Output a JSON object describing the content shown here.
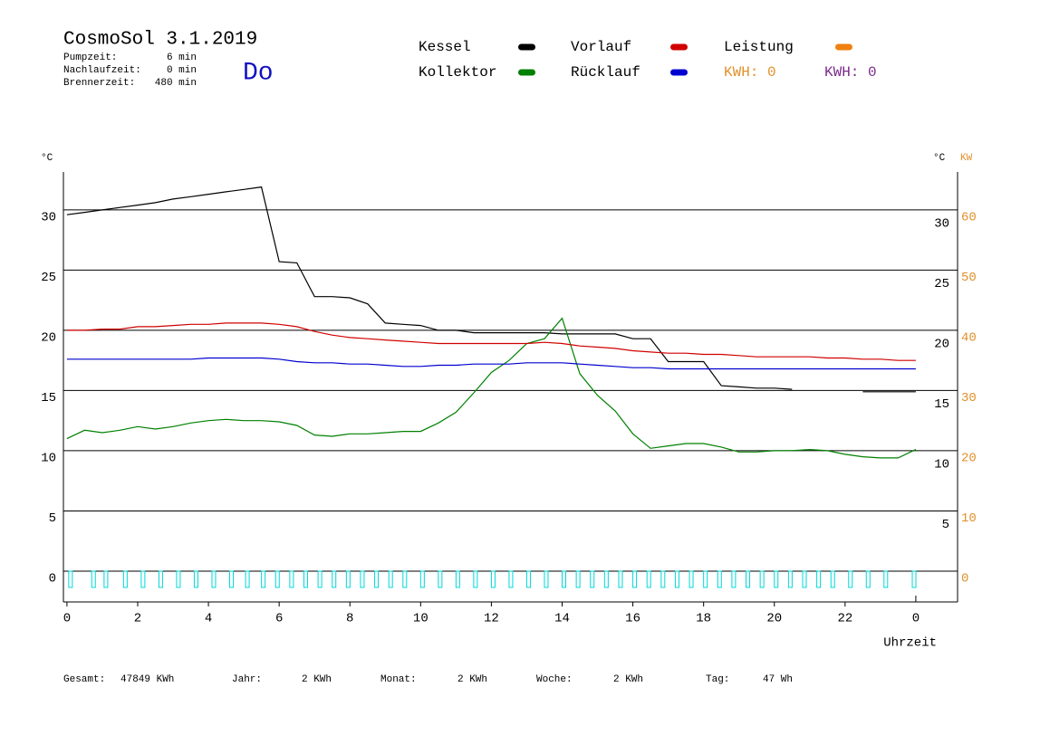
{
  "chart_data": {
    "type": "line",
    "title": "CosmoSol 3.1.2019",
    "day": "Do",
    "info": [
      {
        "label": "Pumpzeit:",
        "value": "6 min"
      },
      {
        "label": "Nachlaufzeit:",
        "value": "0 min"
      },
      {
        "label": "Brennerzeit:",
        "value": "480 min"
      }
    ],
    "kwh": [
      {
        "label": "KWH: 0",
        "color": "#e0902a"
      },
      {
        "label": "KWH: 0",
        "color": "#7a2a8a"
      }
    ],
    "y_label": "°C",
    "y2_label": "°C",
    "y3_label": "KW",
    "x_label": "Uhrzeit",
    "x": [
      0,
      0.5,
      1,
      1.5,
      2,
      2.5,
      3,
      3.5,
      4,
      4.5,
      5,
      5.5,
      6,
      6.5,
      7,
      7.5,
      8,
      8.5,
      9,
      9.5,
      10,
      10.5,
      11,
      11.5,
      12,
      12.5,
      13,
      13.5,
      14,
      14.5,
      15,
      15.5,
      16,
      16.5,
      17,
      17.5,
      18,
      18.5,
      19,
      19.5,
      20,
      20.5,
      21,
      21.5,
      22,
      22.5,
      23,
      23.5,
      24
    ],
    "xlim": [
      -0.1,
      25.18
    ],
    "xticks": [
      0,
      2,
      4,
      6,
      8,
      10,
      12,
      14,
      16,
      18,
      20,
      22,
      {
        "value": 24,
        "label": "0"
      }
    ],
    "ylim": [
      -2.56,
      33.15
    ],
    "yticks": [
      0,
      5,
      10,
      15,
      20,
      25,
      30
    ],
    "y2ticks": [
      5,
      10,
      15,
      20,
      25,
      30
    ],
    "y3lim": [
      -5.12,
      66.3
    ],
    "y3ticks": [
      0,
      10,
      20,
      30,
      40,
      50,
      60
    ],
    "y3color": "#e0902a",
    "grid": true,
    "series": [
      {
        "name": "Kessel",
        "color": "#000000",
        "values": [
          29.6,
          29.8,
          30.0,
          30.2,
          30.4,
          30.6,
          30.9,
          31.1,
          31.3,
          31.5,
          31.7,
          31.9,
          25.7,
          25.6,
          22.8,
          22.8,
          22.7,
          22.2,
          20.6,
          20.5,
          20.4,
          20.0,
          20.0,
          19.8,
          19.8,
          19.8,
          19.8,
          19.8,
          19.7,
          19.7,
          19.7,
          19.7,
          19.3,
          19.3,
          17.4,
          17.4,
          17.4,
          15.4,
          15.3,
          15.2,
          15.2,
          15.1,
          null,
          null,
          null,
          14.9,
          14.9,
          14.9,
          14.9
        ]
      },
      {
        "name": "Kollektor",
        "color": "#008000",
        "values": [
          11.0,
          11.7,
          11.5,
          11.7,
          12.0,
          11.8,
          12.0,
          12.3,
          12.5,
          12.6,
          12.5,
          12.5,
          12.4,
          12.1,
          11.3,
          11.2,
          11.4,
          11.4,
          11.5,
          11.6,
          11.6,
          12.3,
          13.2,
          14.8,
          16.5,
          17.5,
          18.9,
          19.3,
          21.0,
          16.4,
          14.6,
          13.3,
          11.4,
          10.2,
          10.4,
          10.6,
          10.6,
          10.3,
          9.9,
          9.9,
          10.0,
          10.0,
          10.1,
          10.0,
          9.7,
          9.5,
          9.4,
          9.4,
          10.1
        ]
      },
      {
        "name": "Vorlauf",
        "color": "#d00000",
        "values": [
          20.0,
          20.0,
          20.1,
          20.1,
          20.3,
          20.3,
          20.4,
          20.5,
          20.5,
          20.6,
          20.6,
          20.6,
          20.5,
          20.3,
          19.9,
          19.6,
          19.4,
          19.3,
          19.2,
          19.1,
          19.0,
          18.9,
          18.9,
          18.9,
          18.9,
          18.9,
          18.9,
          19.0,
          18.9,
          18.7,
          18.6,
          18.5,
          18.3,
          18.2,
          18.1,
          18.1,
          18.0,
          18.0,
          17.9,
          17.8,
          17.8,
          17.8,
          17.8,
          17.7,
          17.7,
          17.6,
          17.6,
          17.5,
          17.5
        ]
      },
      {
        "name": "Rücklauf",
        "color": "#0000d0",
        "values": [
          17.6,
          17.6,
          17.6,
          17.6,
          17.6,
          17.6,
          17.6,
          17.6,
          17.7,
          17.7,
          17.7,
          17.7,
          17.6,
          17.4,
          17.3,
          17.3,
          17.2,
          17.2,
          17.1,
          17.0,
          17.0,
          17.1,
          17.1,
          17.2,
          17.2,
          17.2,
          17.3,
          17.3,
          17.3,
          17.2,
          17.1,
          17.0,
          16.9,
          16.9,
          16.8,
          16.8,
          16.8,
          16.8,
          16.8,
          16.8,
          16.8,
          16.8,
          16.8,
          16.8,
          16.8,
          16.8,
          16.8,
          16.8,
          16.8
        ]
      },
      {
        "name": "Leistung",
        "color": "#f08010",
        "axis": "y3",
        "values": [
          null,
          null,
          null,
          null,
          null,
          null,
          null,
          null,
          null,
          null,
          null,
          null,
          null,
          null,
          null,
          null,
          null,
          null,
          null,
          null,
          null,
          null,
          null,
          null,
          null,
          null,
          null,
          null,
          null,
          null,
          null,
          null,
          null,
          null,
          null,
          null,
          null,
          null,
          null,
          null,
          null,
          null,
          null,
          null,
          null,
          null,
          null,
          null,
          null
        ]
      }
    ],
    "pump_pulses": [
      0.05,
      0.7,
      1.05,
      1.6,
      2.1,
      2.6,
      3.1,
      3.6,
      4.1,
      4.6,
      5.05,
      5.5,
      5.9,
      6.3,
      6.7,
      7.1,
      7.5,
      7.9,
      8.3,
      8.7,
      9.1,
      9.5,
      10.0,
      10.5,
      11.0,
      11.5,
      12.0,
      12.5,
      13.0,
      13.5,
      14.0,
      14.4,
      14.8,
      15.2,
      15.6,
      16.0,
      16.4,
      16.8,
      17.2,
      17.6,
      18.0,
      18.4,
      18.8,
      19.2,
      19.6,
      20.0,
      20.4,
      20.8,
      21.2,
      21.6,
      22.1,
      22.6,
      23.1,
      23.9
    ],
    "pump_color": "#00d8d8",
    "footer": [
      {
        "label": "Gesamt:",
        "value": "47849 KWh"
      },
      {
        "label": "Jahr:",
        "value": "2 KWh"
      },
      {
        "label": "Monat:",
        "value": "2 KWh"
      },
      {
        "label": "Woche:",
        "value": "2 KWh"
      },
      {
        "label": "Tag:",
        "value": "47 Wh"
      }
    ]
  }
}
